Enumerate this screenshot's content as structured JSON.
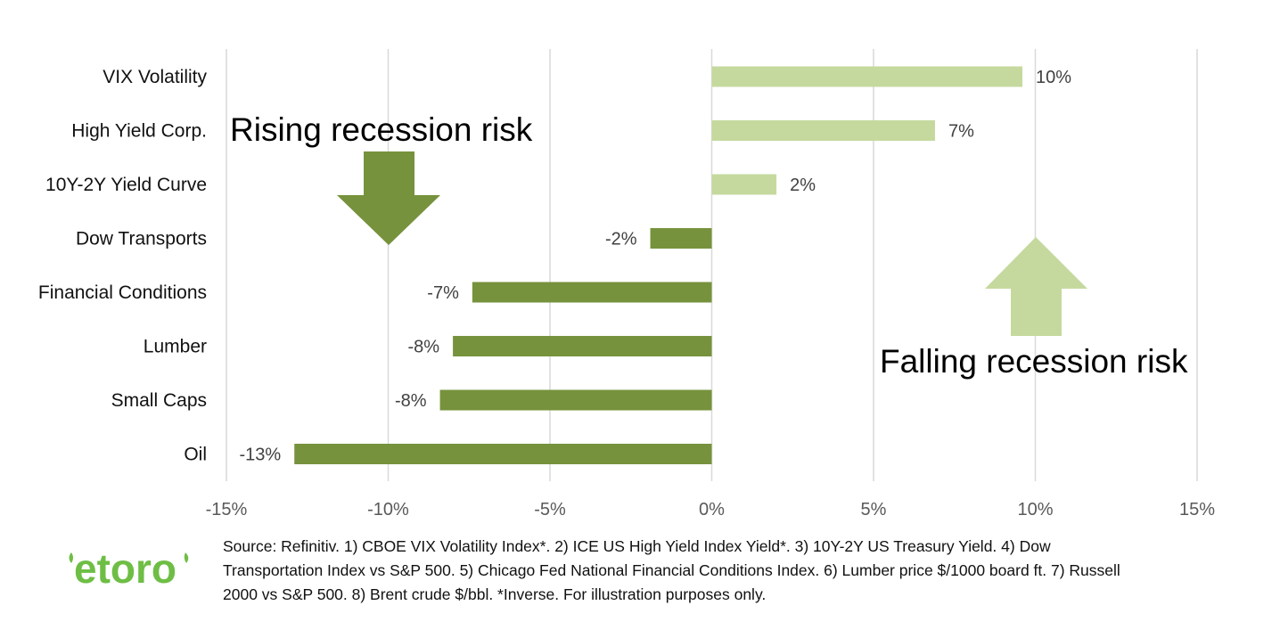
{
  "chart_data": {
    "type": "bar",
    "orientation": "horizontal",
    "categories": [
      "VIX Volatility",
      "High Yield Corp.",
      "10Y-2Y Yield Curve",
      "Dow Transports",
      "Financial Conditions",
      "Lumber",
      "Small Caps",
      "Oil"
    ],
    "values": [
      9.6,
      6.9,
      2.0,
      -1.9,
      -7.4,
      -8.0,
      -8.4,
      -12.9
    ],
    "value_labels": [
      "10%",
      "7%",
      "2%",
      "-2%",
      "-7%",
      "-8%",
      "-8%",
      "-13%"
    ],
    "xlim": [
      -15,
      15
    ],
    "xticks": [
      -15,
      -10,
      -5,
      0,
      5,
      10,
      15
    ],
    "xtick_labels": [
      "-15%",
      "-10%",
      "-5%",
      "0%",
      "5%",
      "10%",
      "15%"
    ],
    "grid": true,
    "colors": {
      "positive": "#c5d99e",
      "negative": "#76923c",
      "grid": "#d9d9d9"
    },
    "annotations": [
      {
        "text": "Rising recession risk",
        "arrow": "down",
        "color": "#76923c"
      },
      {
        "text": "Falling recession risk",
        "arrow": "up",
        "color": "#c5d99e"
      }
    ]
  },
  "footer": {
    "logo_text": "etoro",
    "logo_color": "#6ebe45",
    "source_text": "Source: Refinitiv. 1) CBOE VIX Volatility Index*. 2) ICE US High Yield Index Yield*. 3) 10Y-2Y US Treasury Yield. 4) Dow Transportation Index vs S&P 500. 5) Chicago Fed National Financial Conditions Index. 6) Lumber price $/1000 board ft. 7) Russell 2000 vs S&P 500. 8) Brent crude $/bbl. *Inverse. For illustration purposes only."
  }
}
